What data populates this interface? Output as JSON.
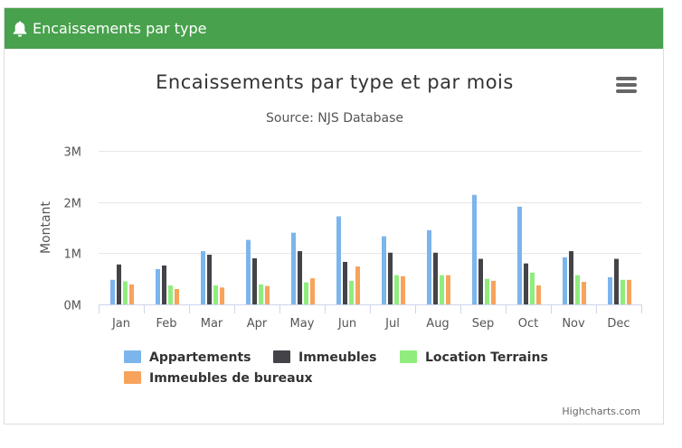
{
  "panel": {
    "title": "Encaissements par type",
    "header_color": "#48a14d",
    "icon": "bell-icon"
  },
  "menu": {
    "icon": "hamburger-menu-icon"
  },
  "credits": "Highcharts.com",
  "chart_data": {
    "type": "bar",
    "title": "Encaissements par type et par mois",
    "subtitle": "Source: NJS Database",
    "ylabel": "Montant",
    "xlabel": "",
    "ylim": [
      0,
      3000000
    ],
    "yticks": [
      {
        "value": 0,
        "label": "0M"
      },
      {
        "value": 1000000,
        "label": "1M"
      },
      {
        "value": 2000000,
        "label": "2M"
      },
      {
        "value": 3000000,
        "label": "3M"
      }
    ],
    "grid": true,
    "legend_position": "bottom",
    "categories": [
      "Jan",
      "Feb",
      "Mar",
      "Apr",
      "May",
      "Jun",
      "Jul",
      "Aug",
      "Sep",
      "Oct",
      "Nov",
      "Dec"
    ],
    "series": [
      {
        "name": "Appartements",
        "color": "#7cb5ec",
        "values": [
          480000,
          690000,
          1040000,
          1260000,
          1400000,
          1720000,
          1330000,
          1450000,
          2140000,
          1910000,
          920000,
          530000
        ]
      },
      {
        "name": "Immeubles",
        "color": "#434348",
        "values": [
          780000,
          760000,
          970000,
          900000,
          1040000,
          830000,
          1010000,
          1010000,
          890000,
          800000,
          1040000,
          890000
        ]
      },
      {
        "name": "Location Terrains",
        "color": "#90ed7d",
        "values": [
          450000,
          370000,
          370000,
          390000,
          430000,
          460000,
          570000,
          570000,
          500000,
          620000,
          570000,
          480000
        ]
      },
      {
        "name": "Immeubles de bureaux",
        "color": "#f7a35c",
        "values": [
          390000,
          300000,
          330000,
          360000,
          510000,
          740000,
          550000,
          570000,
          460000,
          370000,
          440000,
          480000
        ]
      }
    ]
  }
}
